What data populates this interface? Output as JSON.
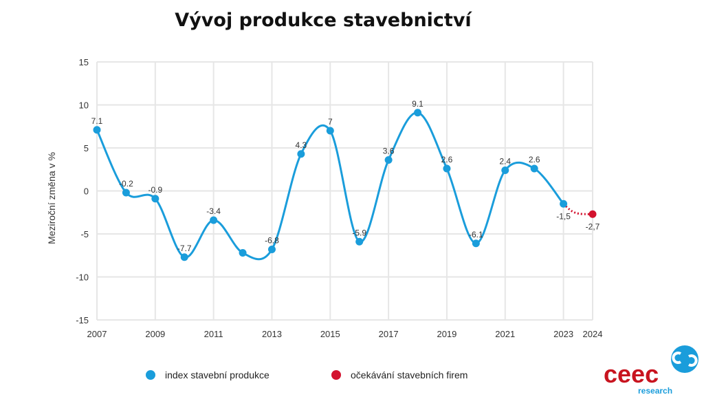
{
  "chart_data": {
    "type": "line",
    "title": "Vývoj produkce stavebnictví",
    "ylabel": "Meziroční změna v %",
    "xlabel": "",
    "ylim": [
      -15,
      15
    ],
    "yticks": [
      "15",
      "10",
      "5",
      "0",
      "-5",
      "-10",
      "-15"
    ],
    "ytick_values": [
      15,
      10,
      5,
      0,
      -5,
      -10,
      -15
    ],
    "xticks": [
      "2007",
      "2009",
      "2011",
      "2013",
      "2015",
      "2017",
      "2019",
      "2021",
      "2023",
      "2024"
    ],
    "xtick_values": [
      2007,
      2009,
      2011,
      2013,
      2015,
      2017,
      2019,
      2021,
      2023,
      2024
    ],
    "grid": true,
    "legend_position": "bottom",
    "series": [
      {
        "name": "index stavební produkce",
        "color": "#1a9ddb",
        "x": [
          2007,
          2008,
          2009,
          2010,
          2011,
          2012,
          2013,
          2014,
          2015,
          2016,
          2017,
          2018,
          2019,
          2020,
          2021,
          2022,
          2023
        ],
        "values": [
          7.1,
          -0.2,
          -0.9,
          -7.7,
          -3.4,
          -7.2,
          -6.8,
          4.3,
          7,
          -5.9,
          3.6,
          9.1,
          2.6,
          -6.1,
          2.4,
          2.6,
          -1.5
        ],
        "labels": [
          "7.1",
          "-0.2",
          "-0.9",
          "-7.7",
          "-3.4",
          null,
          "-6.8",
          "4.3",
          "7",
          "-5.9",
          "3.6",
          "9.1",
          "2.6",
          "-6.1",
          "2.4",
          "2.6",
          "-1,5"
        ]
      },
      {
        "name": "očekávání stavebních firem",
        "color": "#d3122e",
        "x": [
          2024
        ],
        "values": [
          -2.7
        ],
        "labels": [
          "-2,7"
        ]
      }
    ]
  },
  "logo": {
    "text": "ceec",
    "sub": "research"
  }
}
